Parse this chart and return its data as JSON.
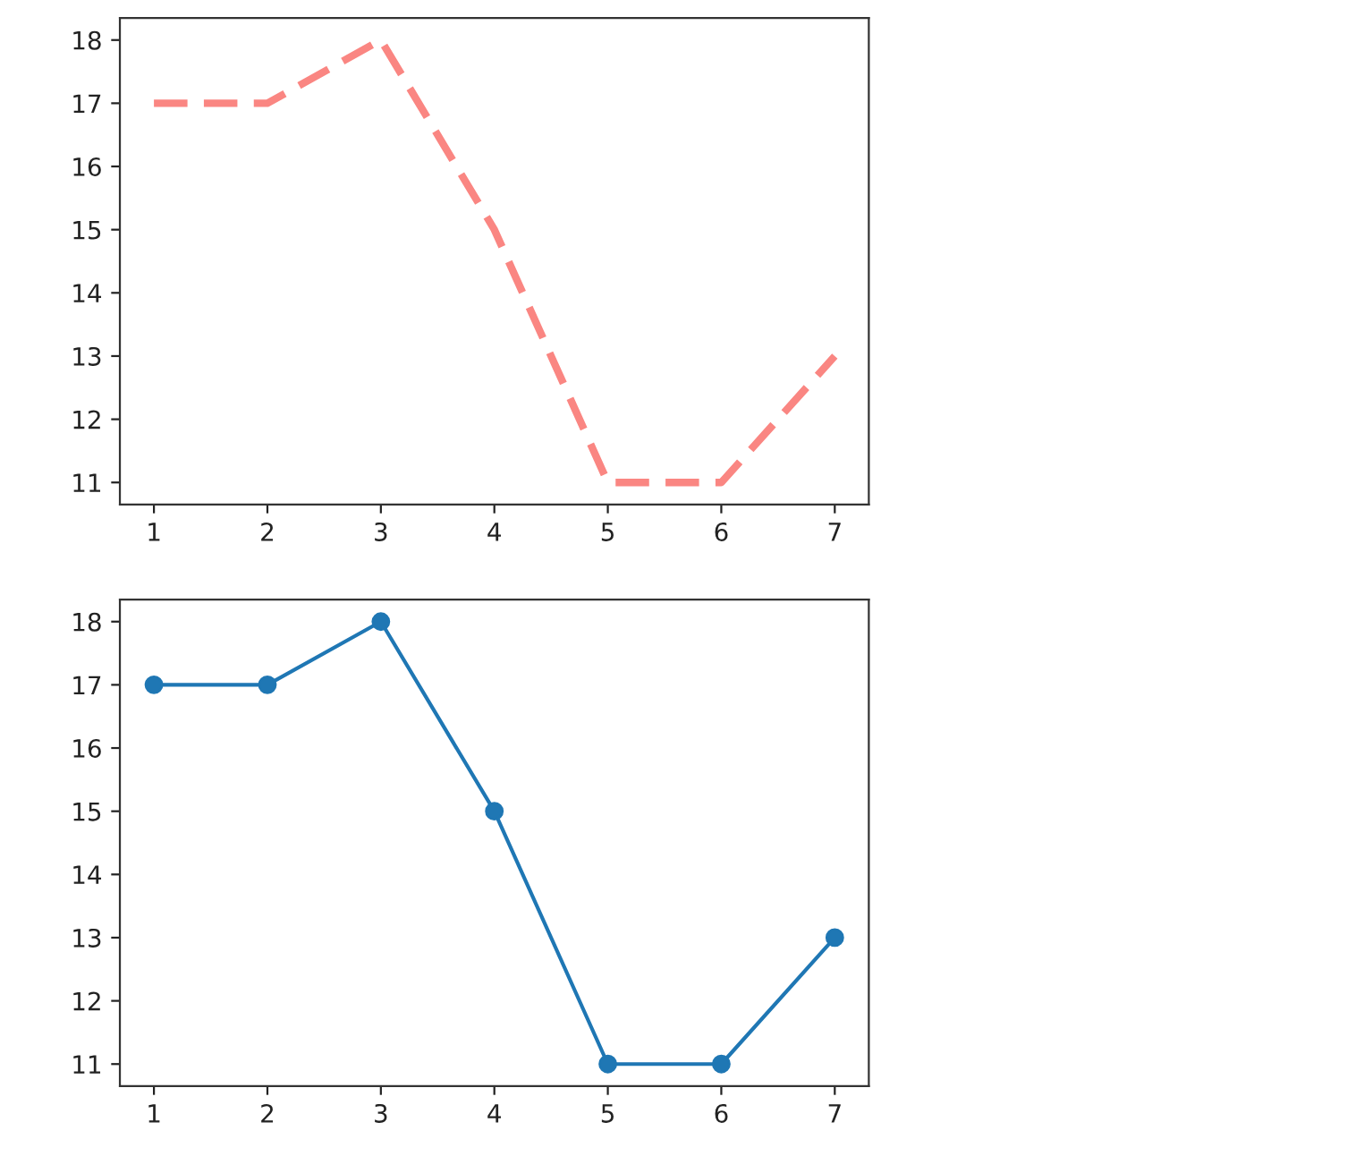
{
  "chart_data": [
    {
      "type": "line",
      "x": [
        1,
        2,
        3,
        4,
        5,
        6,
        7
      ],
      "series": [
        {
          "color": "#fa8682",
          "values": [
            17,
            17,
            18,
            15,
            11,
            11,
            13
          ]
        }
      ],
      "line_style": "dashed",
      "marker": "none",
      "xlim": [
        0.7,
        7.3
      ],
      "ylim": [
        10.65,
        18.35
      ],
      "xticks": [
        1,
        2,
        3,
        4,
        5,
        6,
        7
      ],
      "yticks": [
        11,
        12,
        13,
        14,
        15,
        16,
        17,
        18
      ]
    },
    {
      "type": "line",
      "x": [
        1,
        2,
        3,
        4,
        5,
        6,
        7
      ],
      "series": [
        {
          "color": "#1f77b4",
          "values": [
            17,
            17,
            18,
            15,
            11,
            11,
            13
          ]
        }
      ],
      "line_style": "solid",
      "marker": "circle",
      "xlim": [
        0.7,
        7.3
      ],
      "ylim": [
        10.65,
        18.35
      ],
      "xticks": [
        1,
        2,
        3,
        4,
        5,
        6,
        7
      ],
      "yticks": [
        11,
        12,
        13,
        14,
        15,
        16,
        17,
        18
      ]
    }
  ]
}
